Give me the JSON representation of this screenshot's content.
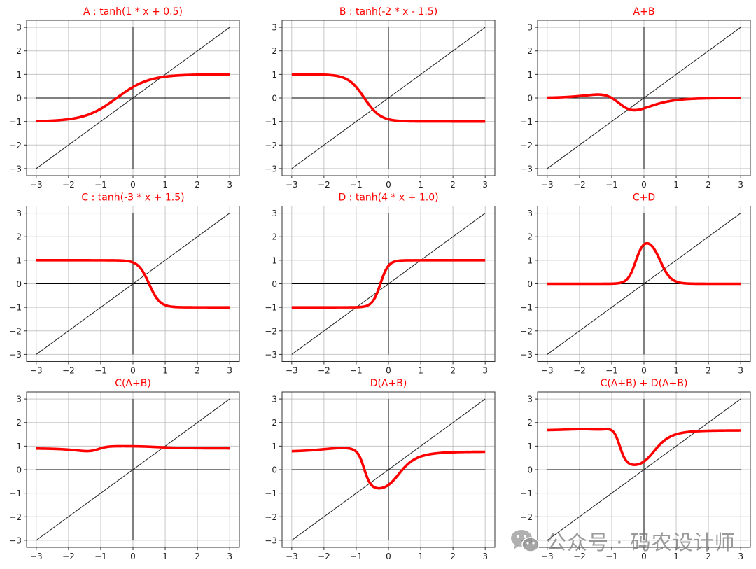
{
  "colors": {
    "curve": "#ff0000",
    "title": "#ff0000",
    "grid": "#b0b0b0",
    "axis": "#000000",
    "frame": "#333333"
  },
  "chart_data": [
    {
      "type": "line",
      "title": "A : tanh(1 * x + 0.5)",
      "expr": {
        "op": "tanh",
        "w": 1,
        "b": 0.5,
        "arg": "x"
      },
      "xlim": [
        -3,
        3
      ],
      "ylim": [
        -3,
        3
      ],
      "xticks": [
        -3,
        -2,
        -1,
        0,
        1,
        2,
        3
      ],
      "yticks": [
        -3,
        -2,
        -1,
        0,
        1,
        2,
        3
      ],
      "grid": true,
      "reference_lines": [
        "y=x",
        "x=0",
        "y=0"
      ]
    },
    {
      "type": "line",
      "title": "B : tanh(-2 * x - 1.5)",
      "expr": {
        "op": "tanh",
        "w": -2,
        "b": -1.5,
        "arg": "x"
      },
      "xlim": [
        -3,
        3
      ],
      "ylim": [
        -3,
        3
      ],
      "xticks": [
        -3,
        -2,
        -1,
        0,
        1,
        2,
        3
      ],
      "yticks": [
        -3,
        -2,
        -1,
        0,
        1,
        2,
        3
      ],
      "grid": true,
      "reference_lines": [
        "y=x",
        "x=0",
        "y=0"
      ]
    },
    {
      "type": "line",
      "title": "A+B",
      "expr": {
        "op": "sum",
        "terms": [
          "A",
          "B"
        ]
      },
      "xlim": [
        -3,
        3
      ],
      "ylim": [
        -3,
        3
      ],
      "xticks": [
        -3,
        -2,
        -1,
        0,
        1,
        2,
        3
      ],
      "yticks": [
        -3,
        -2,
        -1,
        0,
        1,
        2,
        3
      ],
      "grid": true,
      "reference_lines": [
        "y=x",
        "x=0",
        "y=0"
      ]
    },
    {
      "type": "line",
      "title": "C : tanh(-3 * x + 1.5)",
      "expr": {
        "op": "tanh",
        "w": -3,
        "b": 1.5,
        "arg": "x"
      },
      "xlim": [
        -3,
        3
      ],
      "ylim": [
        -3,
        3
      ],
      "xticks": [
        -3,
        -2,
        -1,
        0,
        1,
        2,
        3
      ],
      "yticks": [
        -3,
        -2,
        -1,
        0,
        1,
        2,
        3
      ],
      "grid": true,
      "reference_lines": [
        "y=x",
        "x=0",
        "y=0"
      ]
    },
    {
      "type": "line",
      "title": "D : tanh(4 * x + 1.0)",
      "expr": {
        "op": "tanh",
        "w": 4,
        "b": 1.0,
        "arg": "x"
      },
      "xlim": [
        -3,
        3
      ],
      "ylim": [
        -3,
        3
      ],
      "xticks": [
        -3,
        -2,
        -1,
        0,
        1,
        2,
        3
      ],
      "yticks": [
        -3,
        -2,
        -1,
        0,
        1,
        2,
        3
      ],
      "grid": true,
      "reference_lines": [
        "y=x",
        "x=0",
        "y=0"
      ]
    },
    {
      "type": "line",
      "title": "C+D",
      "expr": {
        "op": "sum",
        "terms": [
          "C",
          "D"
        ]
      },
      "xlim": [
        -3,
        3
      ],
      "ylim": [
        -3,
        3
      ],
      "xticks": [
        -3,
        -2,
        -1,
        0,
        1,
        2,
        3
      ],
      "yticks": [
        -3,
        -2,
        -1,
        0,
        1,
        2,
        3
      ],
      "grid": true,
      "reference_lines": [
        "y=x",
        "x=0",
        "y=0"
      ]
    },
    {
      "type": "line",
      "title": "C(A+B)",
      "expr": {
        "op": "tanh",
        "w": -3,
        "b": 1.5,
        "arg": "A+B"
      },
      "xlim": [
        -3,
        3
      ],
      "ylim": [
        -3,
        3
      ],
      "xticks": [
        -3,
        -2,
        -1,
        0,
        1,
        2,
        3
      ],
      "yticks": [
        -3,
        -2,
        -1,
        0,
        1,
        2,
        3
      ],
      "grid": true,
      "reference_lines": [
        "y=x",
        "x=0",
        "y=0"
      ]
    },
    {
      "type": "line",
      "title": "D(A+B)",
      "expr": {
        "op": "tanh",
        "w": 4,
        "b": 1.0,
        "arg": "A+B"
      },
      "xlim": [
        -3,
        3
      ],
      "ylim": [
        -3,
        3
      ],
      "xticks": [
        -3,
        -2,
        -1,
        0,
        1,
        2,
        3
      ],
      "yticks": [
        -3,
        -2,
        -1,
        0,
        1,
        2,
        3
      ],
      "grid": true,
      "reference_lines": [
        "y=x",
        "x=0",
        "y=0"
      ]
    },
    {
      "type": "line",
      "title": "C(A+B) + D(A+B)",
      "expr": {
        "op": "sum",
        "terms": [
          "C(A+B)",
          "D(A+B)"
        ]
      },
      "xlim": [
        -3,
        3
      ],
      "ylim": [
        -3,
        3
      ],
      "xticks": [
        -3,
        -2,
        -1,
        0,
        1,
        2,
        3
      ],
      "yticks": [
        -3,
        -2,
        -1,
        0,
        1,
        2,
        3
      ],
      "grid": true,
      "reference_lines": [
        "y=x",
        "x=0",
        "y=0"
      ]
    }
  ],
  "watermark": {
    "text": "公众号 · 码农设计师",
    "icon": "wechat-icon"
  }
}
